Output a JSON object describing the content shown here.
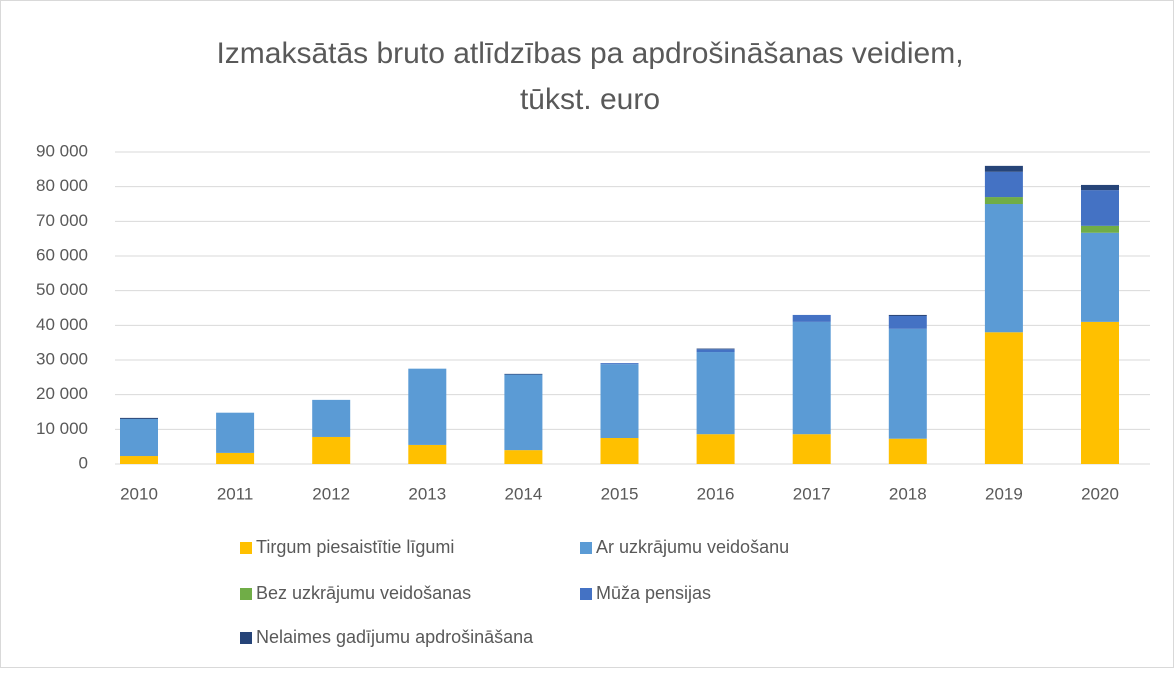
{
  "chart_data": {
    "type": "stacked_bar",
    "title": [
      "Izmaksātās bruto atlīdzības pa apdrošināšanas veidiem,",
      "tūkst. euro"
    ],
    "categories": [
      "2010",
      "2011",
      "2012",
      "2013",
      "2014",
      "2015",
      "2016",
      "2017",
      "2018",
      "2019",
      "2020"
    ],
    "series": [
      {
        "name": "Tirgum piesaistītie līgumi",
        "color": "#ffc000",
        "values": [
          2300,
          3200,
          7800,
          5500,
          4000,
          7500,
          8600,
          8600,
          7300,
          38000,
          41000
        ]
      },
      {
        "name": "Ar uzkrājumu veidošanu",
        "color": "#5b9bd5",
        "values": [
          10700,
          11600,
          10700,
          22000,
          21800,
          21300,
          23700,
          32400,
          31700,
          37000,
          25700
        ]
      },
      {
        "name": "Bez uzkrājumu veidošanas",
        "color": "#70ad47",
        "values": [
          0,
          0,
          0,
          0,
          0,
          0,
          0,
          0,
          0,
          2000,
          2000
        ]
      },
      {
        "name": "Mūža pensijas",
        "color": "#4472c4",
        "values": [
          0,
          0,
          0,
          0,
          0,
          300,
          800,
          2000,
          3700,
          7300,
          10300
        ]
      },
      {
        "name": "Nelaimes gadījumu apdrošināšana",
        "color": "#264478",
        "values": [
          300,
          0,
          0,
          0,
          200,
          0,
          200,
          0,
          300,
          1700,
          1500
        ]
      }
    ],
    "ylim": [
      0,
      90000
    ],
    "yticks": [
      0,
      {
        "value": 10000,
        "label": "10 000"
      },
      {
        "value": 20000,
        "label": "20 000"
      },
      {
        "value": 30000,
        "label": "30 000"
      },
      {
        "value": 40000,
        "label": "40 000"
      },
      {
        "value": 50000,
        "label": "50 000"
      },
      {
        "value": 60000,
        "label": "60 000"
      },
      {
        "value": 70000,
        "label": "70 000"
      },
      {
        "value": 80000,
        "label": "80 000"
      },
      {
        "value": 90000,
        "label": "90 000"
      }
    ],
    "grid": true,
    "legend": "bottom"
  }
}
